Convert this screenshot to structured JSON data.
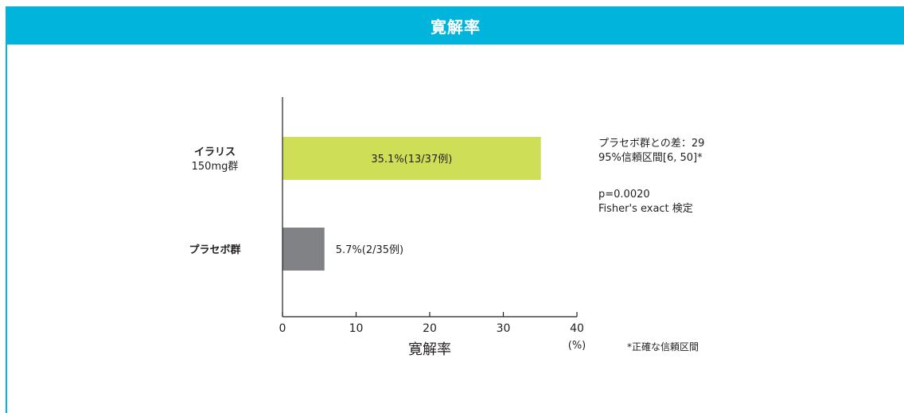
{
  "header": {
    "title": "寛解率"
  },
  "chart_data": {
    "type": "bar",
    "orientation": "horizontal",
    "title": "",
    "xlabel": "寛解率",
    "x_unit": "(%)",
    "xlim": [
      0,
      40
    ],
    "x_ticks": [
      0,
      10,
      20,
      30,
      40
    ],
    "categories": [
      {
        "line1": "イラリス",
        "line2": "150mg群"
      },
      {
        "line1": "プラセボ群",
        "line2": ""
      }
    ],
    "values": [
      35.1,
      5.7
    ],
    "data_labels": [
      "35.1%(13/37例)",
      "5.7%(2/35例)"
    ],
    "colors": [
      "#cfde57",
      "#808285"
    ],
    "grid": false
  },
  "stats": {
    "difference": "プラセボ群との差：29",
    "ci": "95%信頼区間[6, 50]*",
    "p_value": "p=0.0020",
    "test": "Fisher's exact 検定"
  },
  "footnote": "*正確な信頼区間"
}
